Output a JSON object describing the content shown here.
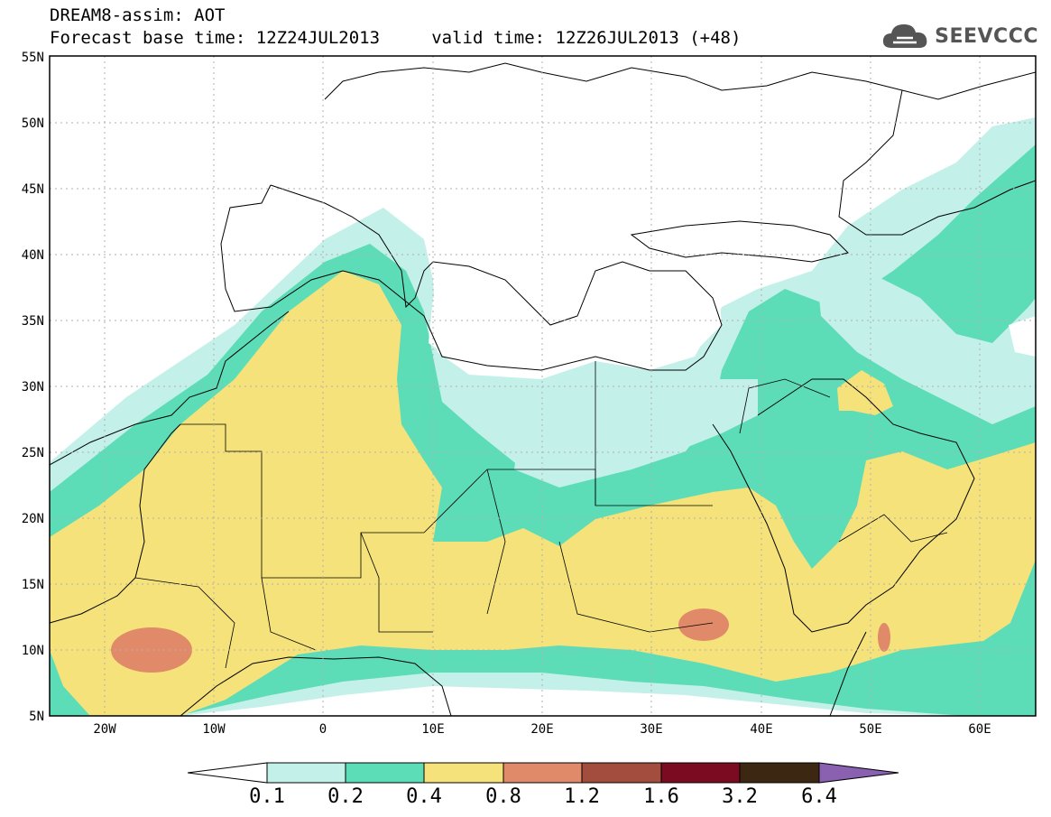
{
  "title_line1": "DREAM8-assim: AOT",
  "title_line2": "Forecast base time: 12Z24JUL2013     valid time: 12Z26JUL2013 (+48)",
  "brand": "SEEVCCC",
  "logo_icon": "cloud-icon",
  "map": {
    "lat_labels": [
      "55N",
      "50N",
      "45N",
      "40N",
      "35N",
      "30N",
      "25N",
      "20N",
      "15N",
      "10N",
      "5N"
    ],
    "lon_labels": [
      "20W",
      "10W",
      "0",
      "10E",
      "20E",
      "30E",
      "40E",
      "50E",
      "60E"
    ],
    "extent": {
      "lon": [
        -25,
        65
      ],
      "lat": [
        5,
        55
      ]
    }
  },
  "colorbar": {
    "labels": [
      "0.1",
      "0.2",
      "0.4",
      "0.8",
      "1.2",
      "1.6",
      "3.2",
      "6.4"
    ],
    "colors": [
      "#c4f0ea",
      "#5dddb7",
      "#f5e27a",
      "#e08a6a",
      "#a24d3e",
      "#7a0b20",
      "#3c2812",
      "#8a60b0"
    ],
    "under_color": "#ffffff"
  }
}
